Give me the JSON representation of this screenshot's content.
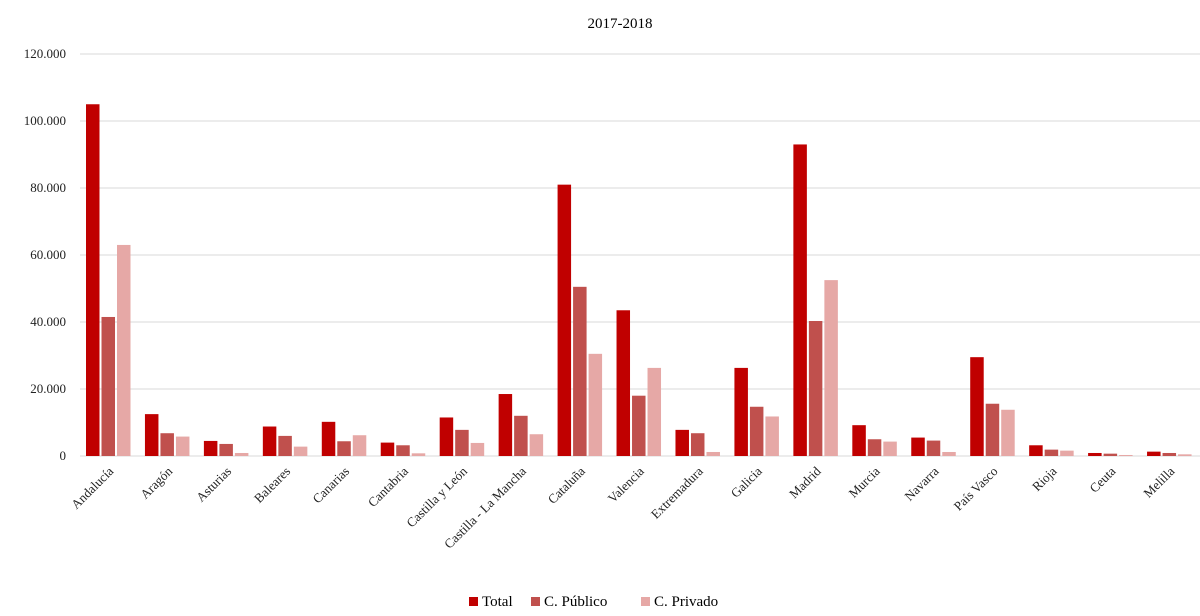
{
  "chart_data": {
    "type": "bar",
    "title": "2017-2018",
    "xlabel": "",
    "ylabel": "",
    "ylim": [
      0,
      120000
    ],
    "yticks": [
      "0",
      "20.000",
      "40.000",
      "60.000",
      "80.000",
      "100.000",
      "120.000"
    ],
    "ytick_values": [
      0,
      20000,
      40000,
      60000,
      80000,
      100000,
      120000
    ],
    "grid": true,
    "legend_position": "bottom",
    "categories": [
      "Andalucía",
      "Aragón",
      "Asturias",
      "Baleares",
      "Canarias",
      "Cantabria",
      "Castilla y León",
      "Castilla - La Mancha",
      "Cataluña",
      "Valencia",
      "Extremadura",
      "Galicia",
      "Madrid",
      "Murcia",
      "Navarra",
      "País Vasco",
      "Rioja",
      "Ceuta",
      "Melilla"
    ],
    "series": [
      {
        "name": "Total",
        "color": "#c00000",
        "values": [
          105000,
          12500,
          4500,
          8800,
          10200,
          4000,
          11500,
          18500,
          81000,
          43500,
          7800,
          26300,
          93000,
          9200,
          5500,
          29500,
          3200,
          900,
          1300
        ]
      },
      {
        "name": "C. Público",
        "color": "#c0504d",
        "values": [
          41500,
          6800,
          3600,
          6000,
          4400,
          3200,
          7800,
          12000,
          50500,
          18000,
          6800,
          14700,
          40300,
          5000,
          4600,
          15600,
          1900,
          700,
          900
        ]
      },
      {
        "name": "C. Privado",
        "color": "#e6a8a6",
        "values": [
          63000,
          5800,
          900,
          2800,
          6200,
          800,
          3900,
          6500,
          30500,
          26300,
          1200,
          11800,
          52500,
          4300,
          1200,
          13800,
          1600,
          300,
          500
        ]
      }
    ]
  }
}
